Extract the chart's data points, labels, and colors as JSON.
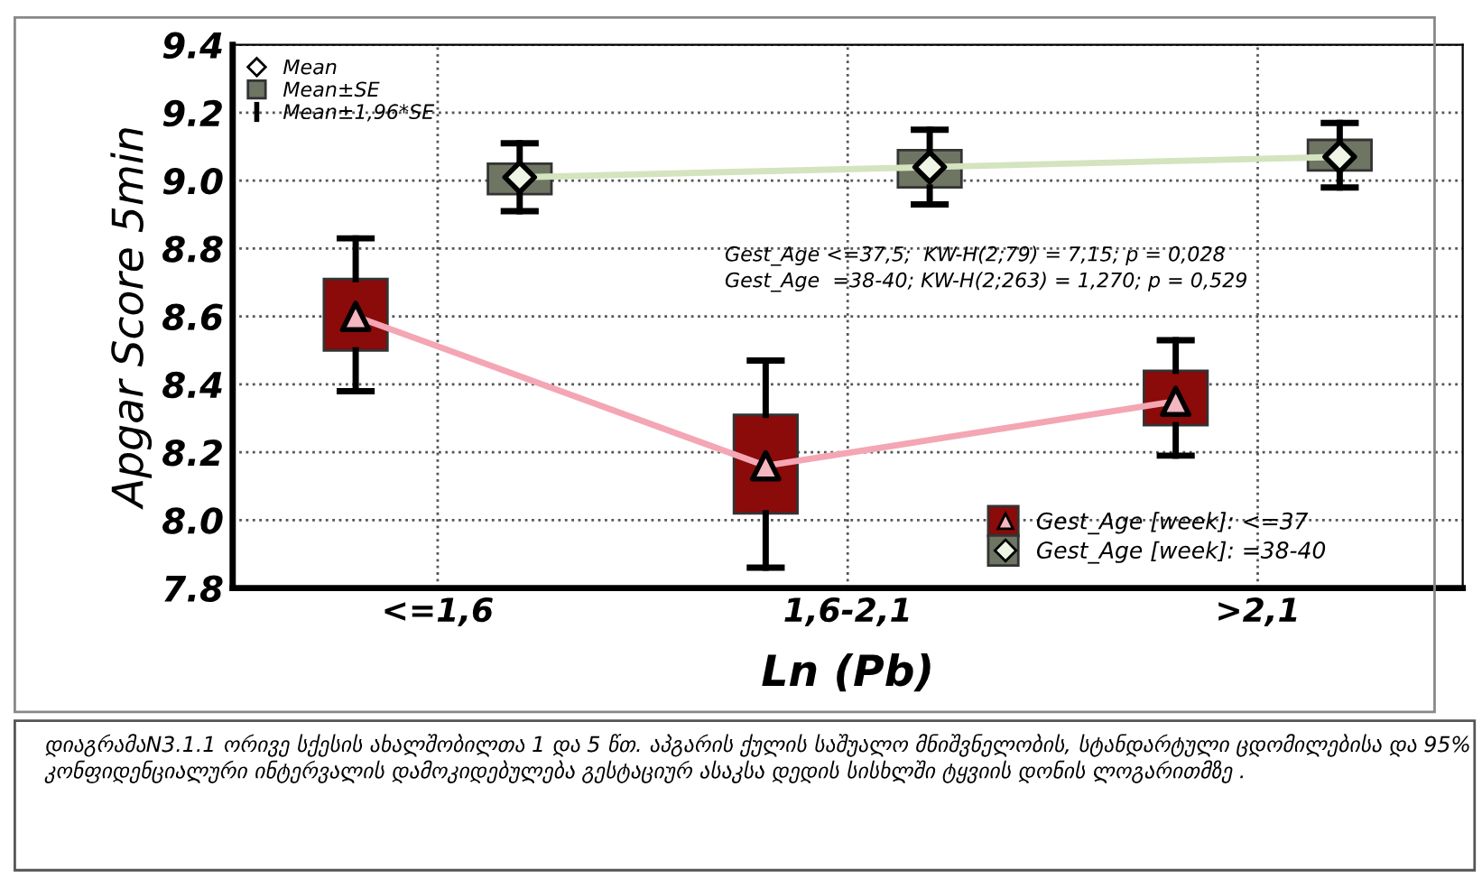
{
  "chart_data": {
    "type": "box",
    "categories": [
      "<=1,6",
      "1,6-2,1",
      ">2,1"
    ],
    "xlabel": "Ln (Pb)",
    "ylabel": "Apgar Score 5min",
    "ylim": [
      7.8,
      9.4
    ],
    "yticks": [
      {
        "value": 7.8,
        "label": "7.8"
      },
      {
        "value": 8.0,
        "label": "8.0"
      },
      {
        "value": 8.2,
        "label": "8.2"
      },
      {
        "value": 8.4,
        "label": "8.4"
      },
      {
        "value": 8.6,
        "label": "8.6"
      },
      {
        "value": 8.8,
        "label": "8.8"
      },
      {
        "value": 9.0,
        "label": "9.0"
      },
      {
        "value": 9.2,
        "label": "9.2"
      },
      {
        "value": 9.4,
        "label": "9.4"
      }
    ],
    "grid": true,
    "legend": "bottom right",
    "series": [
      {
        "name": "Gest_Age [week]: <=37",
        "color": "#8b0a0a",
        "boxes": [
          {
            "low": 8.38,
            "q1": 8.5,
            "q3": 8.71,
            "high": 8.83
          },
          {
            "low": 7.86,
            "q1": 8.02,
            "q3": 8.31,
            "high": 8.47
          },
          {
            "low": 8.19,
            "q1": 8.28,
            "q3": 8.44,
            "high": 8.53
          }
        ]
      },
      {
        "name": "Gest_Age [week]: =38-40",
        "color": "#6e7563",
        "boxes": [
          {
            "low": 8.91,
            "q1": 8.96,
            "q3": 9.05,
            "high": 9.11
          },
          {
            "low": 8.93,
            "q1": 8.98,
            "q3": 9.09,
            "high": 9.15
          },
          {
            "low": 8.98,
            "q1": 9.03,
            "q3": 9.12,
            "high": 9.17
          }
        ]
      },
      {
        "type": "line",
        "color": "#f4a6b4",
        "marker": "triangle",
        "values": [
          8.6,
          8.16,
          8.35
        ]
      },
      {
        "type": "line",
        "color": "#d3e4bf",
        "marker": "diamond",
        "values": [
          9.01,
          9.04,
          9.07
        ]
      }
    ],
    "annotations": [
      "Mean",
      "Mean±SE",
      "Mean±1,96*SE",
      "Gest_Age <=37,5;  KW-H(2;79) = 7,15; p = 0,028",
      "Gest_Age  =38-40; KW-H(2;263) = 1,270; p = 0,529",
      "დიაგრამაN3.1.1 ორივე სქესის ახალშობილთა 1 და 5 წთ. აპგარის ქულის საშუალო მნიშვნელობის, სტანდარტული ცდომილებისა და 95% კონფიდენციალური ინტერვალის დამოკიდებულება გესტაციურ ასაკსა დედის სისხლში ტყვიის დონის ლოგარითმზე ."
    ]
  }
}
